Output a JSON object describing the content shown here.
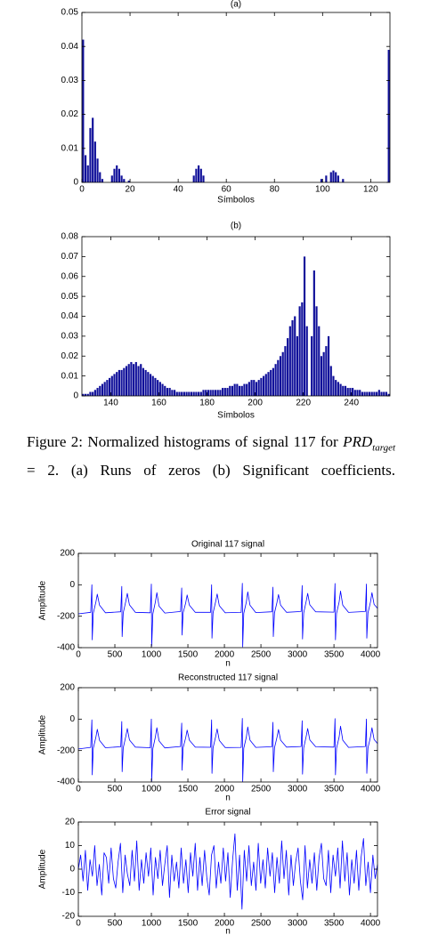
{
  "chart_data": [
    {
      "type": "bar",
      "title": "(a)",
      "xlabel": "Símbolos",
      "color": "#10109a",
      "x": [
        0,
        1,
        2,
        3,
        4,
        5,
        6,
        7,
        8,
        12,
        13,
        14,
        15,
        16,
        17,
        19,
        46,
        47,
        48,
        49,
        50,
        99,
        101,
        103,
        104,
        105,
        106,
        108,
        127
      ],
      "values": [
        0.042,
        0.008,
        0.005,
        0.016,
        0.019,
        0.012,
        0.007,
        0.003,
        0.001,
        0.002,
        0.004,
        0.005,
        0.004,
        0.002,
        0.001,
        0.0005,
        0.002,
        0.004,
        0.005,
        0.004,
        0.002,
        0.001,
        0.002,
        0.003,
        0.0035,
        0.003,
        0.002,
        0.001,
        0.039
      ],
      "xlim": [
        0,
        128
      ],
      "xticks": [
        0,
        20,
        40,
        60,
        80,
        100,
        120
      ],
      "ylim": [
        0,
        0.05
      ],
      "yticks": [
        0,
        0.01,
        0.02,
        0.03,
        0.04,
        0.05
      ]
    },
    {
      "type": "bar",
      "title": "(b)",
      "xlabel": "Símbolos",
      "color": "#10109a",
      "x": [
        128,
        129,
        130,
        131,
        132,
        133,
        134,
        135,
        136,
        137,
        138,
        139,
        140,
        141,
        142,
        143,
        144,
        145,
        146,
        147,
        148,
        149,
        150,
        151,
        152,
        153,
        154,
        155,
        156,
        157,
        158,
        159,
        160,
        161,
        162,
        163,
        164,
        165,
        166,
        167,
        168,
        169,
        170,
        171,
        172,
        173,
        174,
        175,
        176,
        177,
        178,
        179,
        180,
        181,
        182,
        183,
        184,
        185,
        186,
        187,
        188,
        189,
        190,
        191,
        192,
        193,
        194,
        195,
        196,
        197,
        198,
        199,
        200,
        201,
        202,
        203,
        204,
        205,
        206,
        207,
        208,
        209,
        210,
        211,
        212,
        213,
        214,
        215,
        216,
        217,
        218,
        219,
        220,
        221,
        222,
        223,
        224,
        225,
        226,
        227,
        228,
        229,
        230,
        231,
        232,
        233,
        234,
        235,
        236,
        237,
        238,
        239,
        240,
        241,
        242,
        243,
        244,
        245,
        246,
        247,
        248,
        249,
        250,
        251,
        252,
        253,
        254,
        255
      ],
      "values": [
        0.001,
        0.001,
        0.001,
        0.002,
        0.002,
        0.003,
        0.004,
        0.005,
        0.006,
        0.007,
        0.008,
        0.009,
        0.01,
        0.011,
        0.012,
        0.013,
        0.013,
        0.014,
        0.015,
        0.016,
        0.017,
        0.016,
        0.017,
        0.015,
        0.016,
        0.014,
        0.013,
        0.012,
        0.011,
        0.01,
        0.009,
        0.008,
        0.007,
        0.006,
        0.005,
        0.004,
        0.004,
        0.003,
        0.003,
        0.002,
        0.002,
        0.002,
        0.002,
        0.002,
        0.002,
        0.002,
        0.002,
        0.002,
        0.002,
        0.002,
        0.003,
        0.003,
        0.003,
        0.003,
        0.003,
        0.003,
        0.003,
        0.003,
        0.004,
        0.004,
        0.004,
        0.005,
        0.005,
        0.006,
        0.006,
        0.005,
        0.005,
        0.006,
        0.006,
        0.007,
        0.008,
        0.008,
        0.007,
        0.008,
        0.009,
        0.01,
        0.011,
        0.012,
        0.013,
        0.014,
        0.016,
        0.018,
        0.02,
        0.022,
        0.025,
        0.029,
        0.035,
        0.038,
        0.04,
        0.03,
        0.045,
        0.047,
        0.07,
        0.035,
        0,
        0.03,
        0.063,
        0.045,
        0.035,
        0.02,
        0.022,
        0.025,
        0.03,
        0.015,
        0.01,
        0.008,
        0.007,
        0.006,
        0.005,
        0.005,
        0.004,
        0.004,
        0.004,
        0.003,
        0.003,
        0.003,
        0.002,
        0.002,
        0.002,
        0.002,
        0.002,
        0.002,
        0.002,
        0.003,
        0.002,
        0.002,
        0.002,
        0.001
      ],
      "xlim": [
        128,
        256
      ],
      "xticks": [
        140,
        160,
        180,
        200,
        220,
        240
      ],
      "ylim": [
        0,
        0.08
      ],
      "yticks": [
        0,
        0.01,
        0.02,
        0.03,
        0.04,
        0.05,
        0.06,
        0.07,
        0.08
      ]
    },
    {
      "type": "line",
      "title": "Original 117 signal",
      "xlabel": "n",
      "ylabel": "Amplitude",
      "color": "#0000ff",
      "x": [
        0,
        170,
        185,
        190,
        205,
        240,
        260,
        290,
        370,
        580,
        595,
        600,
        615,
        650,
        670,
        700,
        780,
        985,
        1000,
        1005,
        1020,
        1055,
        1075,
        1105,
        1185,
        1400,
        1415,
        1420,
        1435,
        1470,
        1490,
        1520,
        1600,
        1810,
        1825,
        1830,
        1845,
        1880,
        1900,
        1930,
        2010,
        2230,
        2245,
        2250,
        2265,
        2300,
        2320,
        2350,
        2430,
        2650,
        2665,
        2670,
        2685,
        2720,
        2740,
        2770,
        2850,
        3050,
        3065,
        3070,
        3085,
        3120,
        3140,
        3170,
        3250,
        3500,
        3515,
        3520,
        3535,
        3570,
        3590,
        3620,
        3700,
        3930,
        3945,
        3950,
        3965,
        4000,
        4020,
        4050,
        4096
      ],
      "values": [
        -185,
        -175,
        0,
        -350,
        -180,
        -110,
        -60,
        -130,
        -178,
        -172,
        -10,
        -330,
        -180,
        -105,
        -55,
        -128,
        -175,
        -178,
        5,
        -390,
        -185,
        -110,
        -50,
        -135,
        -180,
        -170,
        -20,
        -320,
        -178,
        -115,
        -65,
        -130,
        -175,
        -175,
        0,
        -340,
        -180,
        -108,
        -58,
        -132,
        -178,
        -176,
        10,
        -395,
        -182,
        -110,
        -45,
        -130,
        -177,
        -172,
        -15,
        -330,
        -180,
        -112,
        -62,
        -130,
        -175,
        -170,
        -5,
        -345,
        -180,
        -105,
        -55,
        -128,
        -172,
        -174,
        8,
        -350,
        -182,
        -110,
        -40,
        -130,
        -176,
        -170,
        5,
        -340,
        -180,
        -110,
        -50,
        -125,
        -150
      ],
      "xlim": [
        0,
        4096
      ],
      "xticks": [
        0,
        500,
        1000,
        1500,
        2000,
        2500,
        3000,
        3500,
        4000
      ],
      "ylim": [
        -400,
        200
      ],
      "yticks": [
        -400,
        -200,
        0,
        200
      ]
    },
    {
      "type": "line",
      "title": "Reconstructed 117 signal",
      "xlabel": "n",
      "ylabel": "Amplitude",
      "color": "#0000ff",
      "x": [
        0,
        170,
        185,
        190,
        205,
        240,
        260,
        290,
        370,
        580,
        595,
        600,
        615,
        650,
        670,
        700,
        780,
        985,
        1000,
        1005,
        1020,
        1055,
        1075,
        1105,
        1185,
        1400,
        1415,
        1420,
        1435,
        1470,
        1490,
        1520,
        1600,
        1810,
        1825,
        1830,
        1845,
        1880,
        1900,
        1930,
        2010,
        2230,
        2245,
        2250,
        2265,
        2300,
        2320,
        2350,
        2430,
        2650,
        2665,
        2670,
        2685,
        2720,
        2740,
        2770,
        2850,
        3050,
        3065,
        3070,
        3085,
        3120,
        3140,
        3170,
        3250,
        3500,
        3515,
        3520,
        3535,
        3570,
        3590,
        3620,
        3700,
        3930,
        3945,
        3950,
        3965,
        4000,
        4020,
        4050,
        4096
      ],
      "values": [
        -190,
        -180,
        -5,
        -355,
        -185,
        -115,
        -65,
        -135,
        -182,
        -176,
        -15,
        -335,
        -184,
        -110,
        -60,
        -132,
        -178,
        -182,
        0,
        -395,
        -188,
        -115,
        -55,
        -138,
        -183,
        -174,
        -25,
        -325,
        -182,
        -118,
        -70,
        -134,
        -178,
        -179,
        -5,
        -345,
        -184,
        -112,
        -62,
        -135,
        -181,
        -180,
        5,
        -398,
        -186,
        -114,
        -50,
        -134,
        -180,
        -176,
        -20,
        -335,
        -184,
        -116,
        -66,
        -134,
        -178,
        -174,
        -10,
        -350,
        -184,
        -110,
        -60,
        -132,
        -176,
        -178,
        3,
        -355,
        -186,
        -114,
        -45,
        -134,
        -180,
        -174,
        0,
        -345,
        -184,
        -114,
        -55,
        -130,
        -155
      ],
      "xlim": [
        0,
        4096
      ],
      "xticks": [
        0,
        500,
        1000,
        1500,
        2000,
        2500,
        3000,
        3500,
        4000
      ],
      "ylim": [
        -400,
        200
      ],
      "yticks": [
        -400,
        -200,
        0,
        200
      ]
    },
    {
      "type": "line",
      "title": "Error signal",
      "xlabel": "n",
      "ylabel": "Amplitude",
      "color": "#0000ff",
      "x": [
        0,
        32,
        64,
        96,
        128,
        160,
        192,
        224,
        256,
        288,
        320,
        352,
        384,
        416,
        448,
        480,
        512,
        544,
        576,
        608,
        640,
        672,
        704,
        736,
        768,
        800,
        832,
        864,
        896,
        928,
        960,
        992,
        1024,
        1056,
        1088,
        1120,
        1152,
        1184,
        1216,
        1248,
        1280,
        1312,
        1344,
        1376,
        1408,
        1440,
        1472,
        1504,
        1536,
        1568,
        1600,
        1632,
        1664,
        1696,
        1728,
        1760,
        1792,
        1824,
        1856,
        1888,
        1920,
        1952,
        1984,
        2016,
        2048,
        2080,
        2112,
        2144,
        2176,
        2208,
        2240,
        2272,
        2304,
        2336,
        2368,
        2400,
        2432,
        2464,
        2496,
        2528,
        2560,
        2592,
        2624,
        2656,
        2688,
        2720,
        2752,
        2784,
        2816,
        2848,
        2880,
        2912,
        2944,
        2976,
        3008,
        3040,
        3072,
        3104,
        3136,
        3168,
        3200,
        3232,
        3264,
        3296,
        3328,
        3360,
        3392,
        3424,
        3456,
        3488,
        3520,
        3552,
        3584,
        3616,
        3648,
        3680,
        3712,
        3744,
        3776,
        3808,
        3840,
        3872,
        3904,
        3936,
        3968,
        4000,
        4032,
        4064,
        4096
      ],
      "values": [
        0,
        6,
        -5,
        8,
        -9,
        4,
        -3,
        10,
        -7,
        2,
        -11,
        7,
        5,
        -6,
        9,
        -4,
        -8,
        3,
        11,
        -10,
        6,
        -2,
        -7,
        8,
        -5,
        12,
        -9,
        4,
        -6,
        7,
        -3,
        9,
        -11,
        5,
        -4,
        8,
        -7,
        2,
        10,
        -12,
        6,
        -5,
        3,
        -8,
        9,
        -6,
        4,
        -10,
        7,
        -3,
        11,
        -9,
        5,
        -7,
        8,
        -4,
        -11,
        6,
        10,
        -8,
        3,
        -6,
        9,
        -5,
        7,
        -12,
        4,
        15,
        -9,
        6,
        -17,
        8,
        -5,
        10,
        -7,
        3,
        -9,
        11,
        -6,
        4,
        -8,
        9,
        -3,
        7,
        -10,
        5,
        -6,
        12,
        -4,
        8,
        -11,
        6,
        -7,
        3,
        9,
        -5,
        -13,
        10,
        -8,
        4,
        -6,
        7,
        -9,
        5,
        11,
        -4,
        -7,
        8,
        -10,
        6,
        -3,
        9,
        -8,
        12,
        -5,
        7,
        -11,
        4,
        -6,
        8,
        -9,
        5,
        13,
        -7,
        3,
        -10,
        6,
        -4,
        2
      ],
      "xlim": [
        0,
        4096
      ],
      "xticks": [
        0,
        500,
        1000,
        1500,
        2000,
        2500,
        3000,
        3500,
        4000
      ],
      "ylim": [
        -20,
        20
      ],
      "yticks": [
        -20,
        -10,
        0,
        10,
        20
      ]
    }
  ],
  "caption": {
    "label": "Figure 2:",
    "text": "Normalized histograms of signal 117 for",
    "symbol": "PRD",
    "subscript": "target",
    "rest": "= 2. (a) Runs of zeros (b) Significant coefficients."
  }
}
